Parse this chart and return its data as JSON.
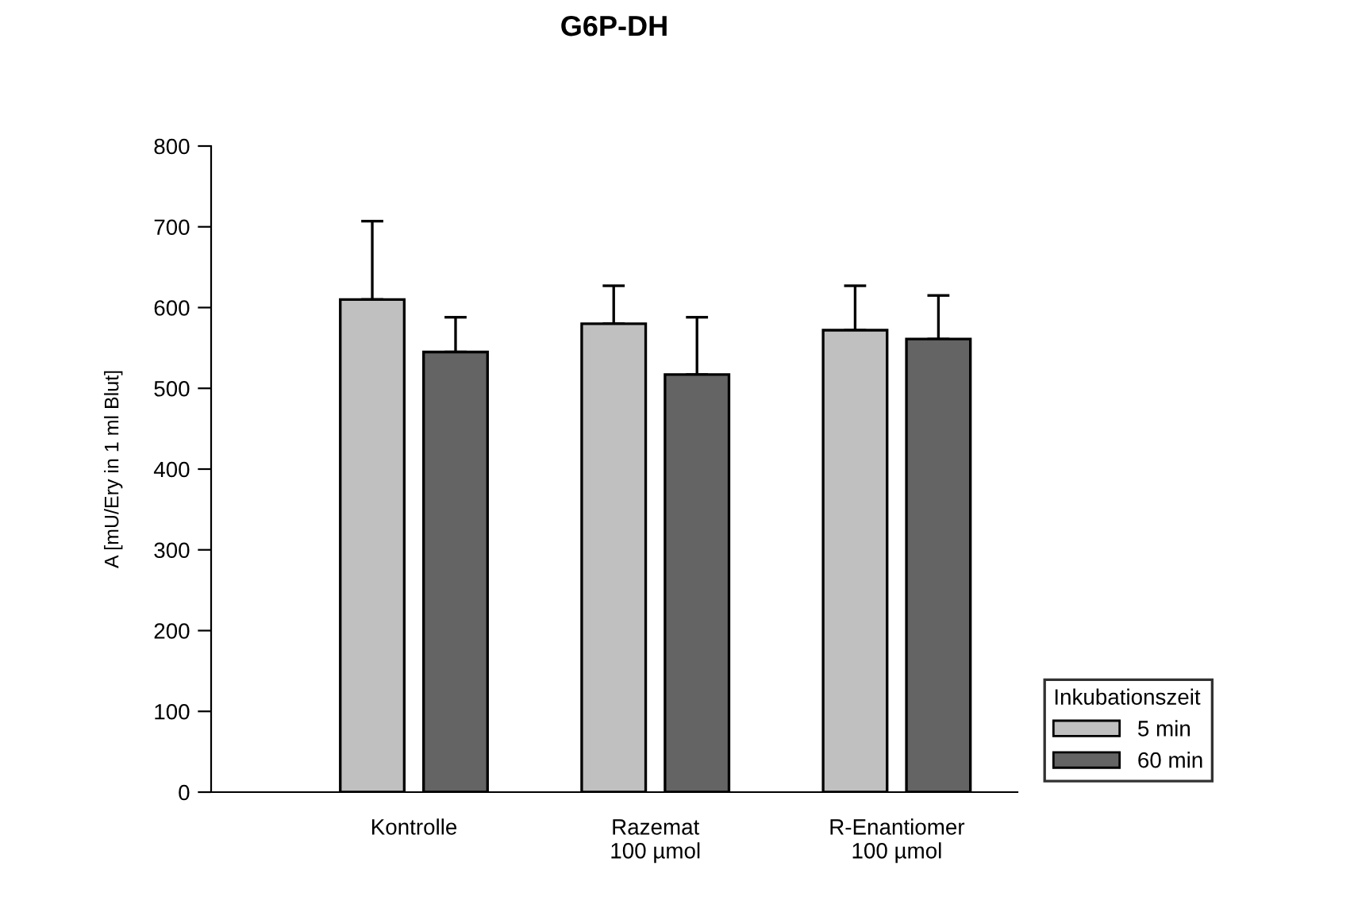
{
  "chart_data": {
    "type": "bar",
    "title": "G6P-DH",
    "ylabel": "A [mU/Ery in 1 ml Blut]",
    "categories": [
      "Kontrolle",
      "Razemat\n100 µmol",
      "R-Enantiomer\n100 µmol"
    ],
    "series": [
      {
        "name": "5 min",
        "color": "#c0c0c0",
        "values": [
          610,
          580,
          572
        ],
        "errors": [
          [
            610,
            707
          ],
          [
            580,
            627
          ],
          [
            572,
            627
          ]
        ]
      },
      {
        "name": "60 min",
        "color": "#646464",
        "values": [
          545,
          517,
          561
        ],
        "errors": [
          [
            545,
            588
          ],
          [
            517,
            588
          ],
          [
            561,
            615
          ]
        ]
      }
    ],
    "legend_title": "Inkubationszeit",
    "legend": "bottom right",
    "ylim": [
      0,
      800
    ],
    "yticks": [
      0,
      100,
      200,
      300,
      400,
      500,
      600,
      700,
      800
    ],
    "grid": false
  }
}
